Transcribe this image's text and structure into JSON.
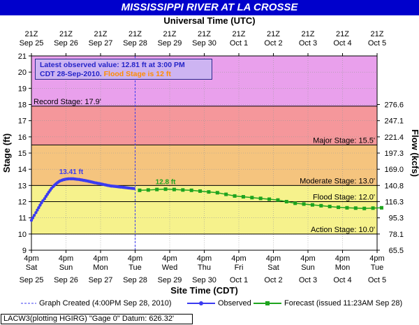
{
  "title": "MISSISSIPPI RIVER AT LA CROSSE",
  "top_axis_title": "Universal Time (UTC)",
  "bottom_axis_title": "Site Time (CDT)",
  "info": {
    "line1": "Latest observed value: 12.81 ft at 3:00 PM",
    "line2_prefix": "CDT 28-Sep-2010.",
    "line2_flood": "Flood Stage is 12 ft"
  },
  "legend": {
    "created": "Graph Created (4:00PM Sep 28, 2010)",
    "observed": "Observed",
    "forecast": "Forecast (issued 11:23AM Sep 28)"
  },
  "datum": "LACW3(plotting HGIRG) \"Gage 0\" Datum: 626.32'",
  "colors": {
    "title_bg": "#0000cc",
    "record": "#e9a0ec",
    "major": "#f5979b",
    "moderate": "#f5c47e",
    "flood": "#f6f28c",
    "action_below": "#ffffff",
    "observed": "#3b3bf0",
    "forecast": "#1ea41e"
  },
  "chart_data": {
    "type": "line",
    "ylabel": "Stage (ft)",
    "y2label": "Flow (kcfs)",
    "ylim": [
      9,
      21
    ],
    "yticks": [
      9,
      10,
      11,
      12,
      13,
      14,
      15,
      16,
      17,
      18,
      19,
      20,
      21
    ],
    "xlim_days": [
      "Sep 25 4pm",
      "Oct 5 4pm"
    ],
    "bottom_ticks": [
      {
        "l1": "4pm",
        "l2": "Sat",
        "l3": "Sep 25"
      },
      {
        "l1": "4pm",
        "l2": "Sun",
        "l3": "Sep 26"
      },
      {
        "l1": "4pm",
        "l2": "Mon",
        "l3": "Sep 27"
      },
      {
        "l1": "4pm",
        "l2": "Tue",
        "l3": "Sep 28"
      },
      {
        "l1": "4pm",
        "l2": "Wed",
        "l3": "Sep 29"
      },
      {
        "l1": "4pm",
        "l2": "Thu",
        "l3": "Sep 30"
      },
      {
        "l1": "4pm",
        "l2": "Fri",
        "l3": "Oct 1"
      },
      {
        "l1": "4pm",
        "l2": "Sat",
        "l3": "Oct 2"
      },
      {
        "l1": "4pm",
        "l2": "Sun",
        "l3": "Oct 3"
      },
      {
        "l1": "4pm",
        "l2": "Mon",
        "l3": "Oct 4"
      },
      {
        "l1": "4pm",
        "l2": "Tue",
        "l3": "Oct 5"
      }
    ],
    "top_ticks": [
      {
        "l1": "21Z",
        "l2": "Sep 25"
      },
      {
        "l1": "21Z",
        "l2": "Sep 26"
      },
      {
        "l1": "21Z",
        "l2": "Sep 27"
      },
      {
        "l1": "21Z",
        "l2": "Sep 28"
      },
      {
        "l1": "21Z",
        "l2": "Sep 29"
      },
      {
        "l1": "21Z",
        "l2": "Sep 30"
      },
      {
        "l1": "21Z",
        "l2": "Oct 1"
      },
      {
        "l1": "21Z",
        "l2": "Oct 2"
      },
      {
        "l1": "21Z",
        "l2": "Oct 3"
      },
      {
        "l1": "21Z",
        "l2": "Oct 4"
      },
      {
        "l1": "21Z",
        "l2": "Oct 5"
      }
    ],
    "flow_ticks": [
      {
        "stage": 9,
        "label": "65.5"
      },
      {
        "stage": 10,
        "label": "78.1"
      },
      {
        "stage": 11,
        "label": "95.3"
      },
      {
        "stage": 12,
        "label": "116.3"
      },
      {
        "stage": 13,
        "label": "140.8"
      },
      {
        "stage": 14,
        "label": "169.0"
      },
      {
        "stage": 15,
        "label": "197.3"
      },
      {
        "stage": 16,
        "label": "221.4"
      },
      {
        "stage": 17,
        "label": "247.1"
      },
      {
        "stage": 18,
        "label": "276.6"
      }
    ],
    "stage_bands": [
      {
        "name": "Record Stage: 17.9'",
        "value": 17.9,
        "from": 17.9,
        "to": 21,
        "color": "#e9a0ec"
      },
      {
        "name": "Major Stage: 15.5'",
        "value": 15.5,
        "from": 15.5,
        "to": 17.9,
        "color": "#f5979b"
      },
      {
        "name": "Moderate Stage: 13.0'",
        "value": 13.0,
        "from": 13.0,
        "to": 15.5,
        "color": "#f5c47e"
      },
      {
        "name": "Flood Stage: 12.0'",
        "value": 12.0,
        "from": 12.0,
        "to": 13.0,
        "color": "#f6f28c"
      },
      {
        "name": "Action Stage: 10.0'",
        "value": 10.0,
        "from": 10.0,
        "to": 12.0,
        "color": "#f6f28c"
      }
    ],
    "created_day": 3.0,
    "series": [
      {
        "name": "Observed",
        "points": [
          [
            0.0,
            10.85
          ],
          [
            0.04,
            11.0
          ],
          [
            0.08,
            11.15
          ],
          [
            0.13,
            11.32
          ],
          [
            0.17,
            11.48
          ],
          [
            0.21,
            11.63
          ],
          [
            0.25,
            11.78
          ],
          [
            0.29,
            11.92
          ],
          [
            0.33,
            12.05
          ],
          [
            0.38,
            12.18
          ],
          [
            0.42,
            12.32
          ],
          [
            0.46,
            12.45
          ],
          [
            0.5,
            12.58
          ],
          [
            0.54,
            12.7
          ],
          [
            0.58,
            12.82
          ],
          [
            0.63,
            12.93
          ],
          [
            0.67,
            13.02
          ],
          [
            0.71,
            13.1
          ],
          [
            0.75,
            13.17
          ],
          [
            0.79,
            13.23
          ],
          [
            0.83,
            13.28
          ],
          [
            0.88,
            13.32
          ],
          [
            0.92,
            13.35
          ],
          [
            0.96,
            13.37
          ],
          [
            1.0,
            13.39
          ],
          [
            1.04,
            13.4
          ],
          [
            1.08,
            13.41
          ],
          [
            1.13,
            13.41
          ],
          [
            1.17,
            13.41
          ],
          [
            1.21,
            13.41
          ],
          [
            1.25,
            13.4
          ],
          [
            1.29,
            13.39
          ],
          [
            1.33,
            13.38
          ],
          [
            1.38,
            13.37
          ],
          [
            1.42,
            13.35
          ],
          [
            1.46,
            13.34
          ],
          [
            1.5,
            13.32
          ],
          [
            1.54,
            13.31
          ],
          [
            1.58,
            13.29
          ],
          [
            1.63,
            13.27
          ],
          [
            1.67,
            13.25
          ],
          [
            1.71,
            13.23
          ],
          [
            1.75,
            13.21
          ],
          [
            1.79,
            13.19
          ],
          [
            1.83,
            13.17
          ],
          [
            1.88,
            13.15
          ],
          [
            1.92,
            13.13
          ],
          [
            1.96,
            13.12
          ],
          [
            2.0,
            13.1
          ],
          [
            2.04,
            13.08
          ],
          [
            2.08,
            13.06
          ],
          [
            2.13,
            13.04
          ],
          [
            2.17,
            13.02
          ],
          [
            2.21,
            13.0
          ],
          [
            2.25,
            12.99
          ],
          [
            2.29,
            12.97
          ],
          [
            2.33,
            12.96
          ],
          [
            2.38,
            12.95
          ],
          [
            2.42,
            12.94
          ],
          [
            2.46,
            12.93
          ],
          [
            2.5,
            12.92
          ],
          [
            2.54,
            12.91
          ],
          [
            2.58,
            12.9
          ],
          [
            2.63,
            12.89
          ],
          [
            2.67,
            12.88
          ],
          [
            2.71,
            12.87
          ],
          [
            2.75,
            12.86
          ],
          [
            2.79,
            12.85
          ],
          [
            2.83,
            12.84
          ],
          [
            2.88,
            12.83
          ],
          [
            2.92,
            12.82
          ],
          [
            2.96,
            12.81
          ]
        ]
      },
      {
        "name": "Forecast (issued 11:23AM Sep 28)",
        "points": [
          [
            3.13,
            12.7
          ],
          [
            3.38,
            12.72
          ],
          [
            3.63,
            12.75
          ],
          [
            3.88,
            12.77
          ],
          [
            4.13,
            12.75
          ],
          [
            4.38,
            12.72
          ],
          [
            4.63,
            12.7
          ],
          [
            4.88,
            12.65
          ],
          [
            5.13,
            12.6
          ],
          [
            5.38,
            12.55
          ],
          [
            5.63,
            12.45
          ],
          [
            5.88,
            12.35
          ],
          [
            6.13,
            12.3
          ],
          [
            6.38,
            12.25
          ],
          [
            6.63,
            12.2
          ],
          [
            6.88,
            12.15
          ],
          [
            7.13,
            12.1
          ],
          [
            7.38,
            12.0
          ],
          [
            7.63,
            11.9
          ],
          [
            7.88,
            11.85
          ],
          [
            8.13,
            11.8
          ],
          [
            8.38,
            11.75
          ],
          [
            8.63,
            11.7
          ],
          [
            8.88,
            11.65
          ],
          [
            9.13,
            11.62
          ],
          [
            9.38,
            11.6
          ],
          [
            9.63,
            11.58
          ],
          [
            9.88,
            11.6
          ],
          [
            10.13,
            11.62
          ]
        ]
      }
    ],
    "annotations": [
      {
        "text": "13.41 ft",
        "x": 1.15,
        "y": 13.41,
        "series": "Observed"
      },
      {
        "text": "12.8 ft",
        "x": 3.88,
        "y": 12.77,
        "series": "Forecast (issued 11:23AM Sep 28)"
      }
    ]
  }
}
